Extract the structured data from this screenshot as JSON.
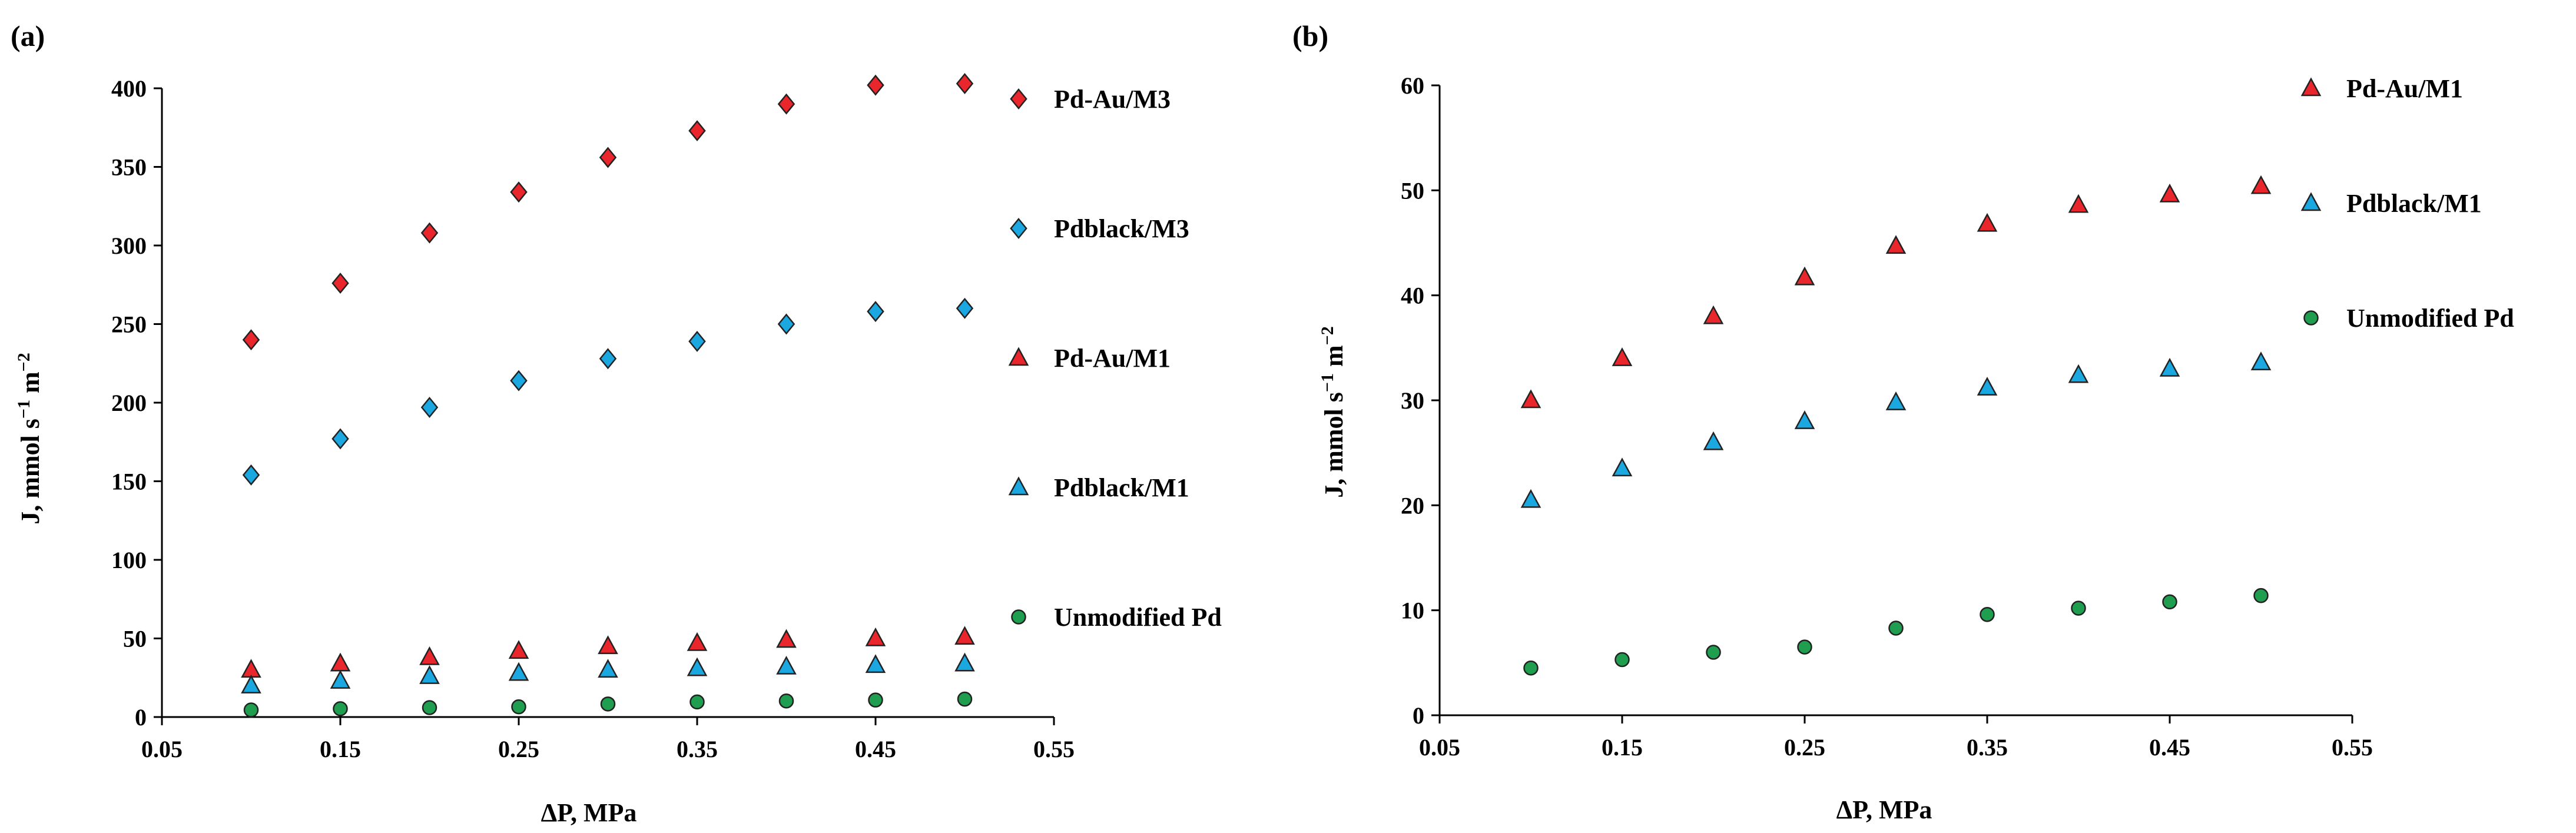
{
  "chart_data": [
    {
      "type": "scatter",
      "panel_label": "(a)",
      "xlabel": "ΔP, MPa",
      "ylabel": "J, mmol s−1 m−2",
      "xlim": [
        0.05,
        0.55
      ],
      "ylim": [
        0,
        400
      ],
      "x_ticks": [
        "0.05",
        "0.15",
        "0.25",
        "0.35",
        "0.45",
        "0.55"
      ],
      "y_ticks": [
        "0",
        "50",
        "100",
        "150",
        "200",
        "250",
        "300",
        "350",
        "400"
      ],
      "legend_position": "right",
      "x": [
        0.1,
        0.15,
        0.2,
        0.25,
        0.3,
        0.35,
        0.4,
        0.45,
        0.5
      ],
      "series": [
        {
          "name": "Pd-Au/M3",
          "marker": "diamond",
          "color": "#e8262c",
          "values": [
            240,
            276,
            308,
            334,
            356,
            373,
            390,
            402,
            403
          ]
        },
        {
          "name": "Pdblack/M3",
          "marker": "diamond",
          "color": "#1ba7e0",
          "values": [
            154,
            177,
            197,
            214,
            228,
            239,
            250,
            258,
            260
          ]
        },
        {
          "name": "Pd-Au/M1",
          "marker": "triangle",
          "color": "#e8262c",
          "values": [
            30,
            34,
            38,
            42,
            45,
            47,
            49,
            50,
            51
          ]
        },
        {
          "name": "Pdblack/M1",
          "marker": "triangle",
          "color": "#1ba7e0",
          "values": [
            20,
            23,
            26,
            28,
            30,
            31,
            32,
            33,
            34
          ]
        },
        {
          "name": "Unmodified Pd",
          "marker": "circle",
          "color": "#1e9e4e",
          "values": [
            4.5,
            5.3,
            6,
            6.5,
            8.3,
            9.6,
            10.2,
            10.8,
            11.4
          ]
        }
      ]
    },
    {
      "type": "scatter",
      "panel_label": "(b)",
      "xlabel": "ΔP, MPa",
      "ylabel": "J, mmol s−1 m−2",
      "xlim": [
        0.05,
        0.55
      ],
      "ylim": [
        0,
        60
      ],
      "x_ticks": [
        "0.05",
        "0.15",
        "0.25",
        "0.35",
        "0.45",
        "0.55"
      ],
      "y_ticks": [
        "0",
        "10",
        "20",
        "30",
        "40",
        "50",
        "60"
      ],
      "legend_position": "top-right",
      "x": [
        0.1,
        0.15,
        0.2,
        0.25,
        0.3,
        0.35,
        0.4,
        0.45,
        0.5
      ],
      "series": [
        {
          "name": "Pd-Au/M1",
          "marker": "triangle",
          "color": "#e8262c",
          "values": [
            30,
            34,
            38,
            41.7,
            44.7,
            46.8,
            48.6,
            49.6,
            50.4
          ]
        },
        {
          "name": "Pdblack/M1",
          "marker": "triangle",
          "color": "#1ba7e0",
          "values": [
            20.5,
            23.5,
            26,
            28,
            29.8,
            31.2,
            32.4,
            33,
            33.6
          ]
        },
        {
          "name": "Unmodified Pd",
          "marker": "circle",
          "color": "#1e9e4e",
          "values": [
            4.5,
            5.3,
            6,
            6.5,
            8.3,
            9.6,
            10.2,
            10.8,
            11.4
          ]
        }
      ]
    }
  ]
}
